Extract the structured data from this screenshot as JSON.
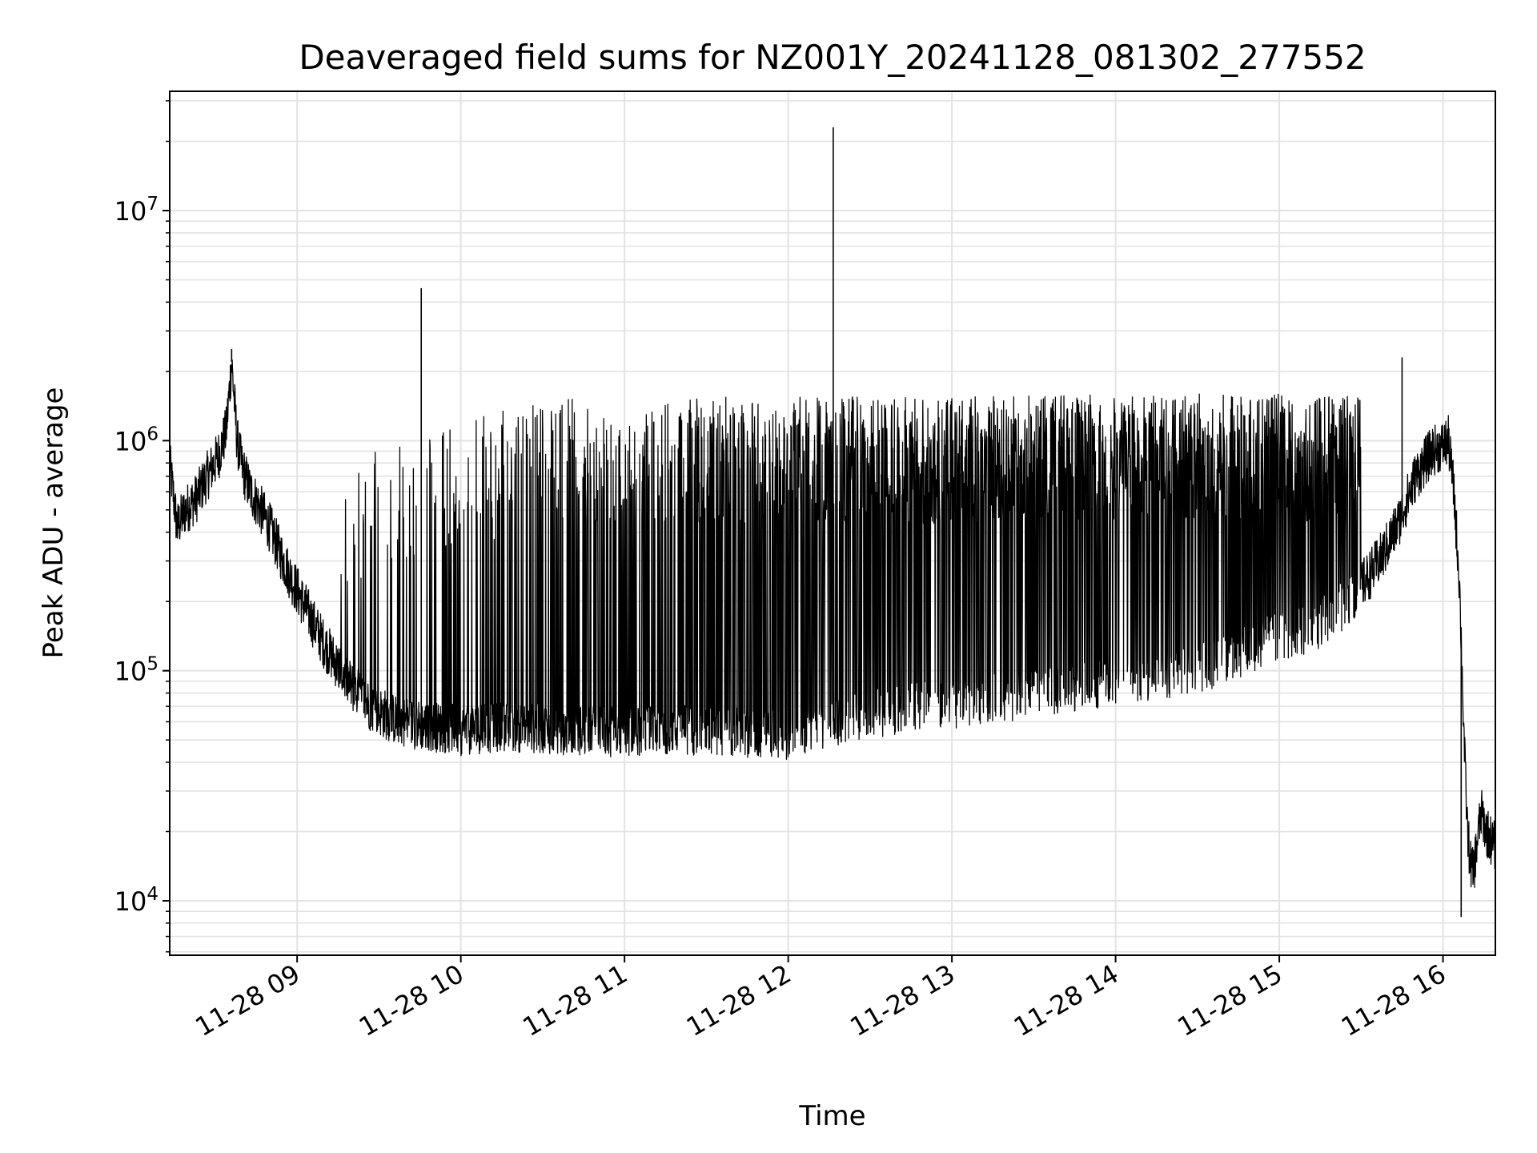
{
  "chart_data": {
    "type": "line",
    "title": "Deaveraged field sums for NZ001Y_20241128_081302_277552",
    "xlabel": "Time",
    "ylabel": "Peak ADU - average",
    "yscale": "log",
    "grid": true,
    "legend": "none",
    "line_color": "#000000",
    "grid_color": "#e3e3e3",
    "xlim": [
      "2024-11-28 08:13:18",
      "2024-11-28 16:19:12"
    ],
    "ylim": [
      5800,
      33000000
    ],
    "x_ticks": [
      {
        "value": "2024-11-28 09:00",
        "label": "11-28 09"
      },
      {
        "value": "2024-11-28 10:00",
        "label": "11-28 10"
      },
      {
        "value": "2024-11-28 11:00",
        "label": "11-28 11"
      },
      {
        "value": "2024-11-28 12:00",
        "label": "11-28 12"
      },
      {
        "value": "2024-11-28 13:00",
        "label": "11-28 13"
      },
      {
        "value": "2024-11-28 14:00",
        "label": "11-28 14"
      },
      {
        "value": "2024-11-28 15:00",
        "label": "11-28 15"
      },
      {
        "value": "2024-11-28 16:00",
        "label": "11-28 16"
      }
    ],
    "y_ticks": [
      {
        "value": 10000,
        "base": "10",
        "exp": "4"
      },
      {
        "value": 100000,
        "base": "10",
        "exp": "5"
      },
      {
        "value": 1000000,
        "base": "10",
        "exp": "6"
      },
      {
        "value": 10000000,
        "base": "10",
        "exp": "7"
      }
    ],
    "series": [
      {
        "x": [
          "2024-11-28 08:13:18",
          "2024-11-28 08:16:00",
          "2024-11-28 08:19:00",
          "2024-11-28 08:23:00",
          "2024-11-28 08:27:00",
          "2024-11-28 08:31:00",
          "2024-11-28 08:34:00",
          "2024-11-28 08:36:00",
          "2024-11-28 08:38:00",
          "2024-11-28 08:40:00",
          "2024-11-28 08:43:00",
          "2024-11-28 08:46:00",
          "2024-11-28 08:50:00",
          "2024-11-28 08:54:00",
          "2024-11-28 08:58:00",
          "2024-11-28 09:02:00",
          "2024-11-28 09:06:00",
          "2024-11-28 09:10:00",
          "2024-11-28 09:15:00",
          "2024-11-28 09:20:00",
          "2024-11-28 09:27:00",
          "2024-11-28 09:35:00",
          "2024-11-28 09:45:00",
          "2024-11-28 10:00:00",
          "2024-11-28 10:15:00",
          "2024-11-28 10:30:00",
          "2024-11-28 10:45:00",
          "2024-11-28 11:00:00",
          "2024-11-28 11:15:00",
          "2024-11-28 11:30:00",
          "2024-11-28 11:45:00",
          "2024-11-28 12:00:00",
          "2024-11-28 12:15:00",
          "2024-11-28 12:30:00",
          "2024-11-28 12:45:00",
          "2024-11-28 13:00:00",
          "2024-11-28 13:15:00",
          "2024-11-28 13:30:00",
          "2024-11-28 13:45:00",
          "2024-11-28 14:00:00",
          "2024-11-28 14:15:00",
          "2024-11-28 14:30:00",
          "2024-11-28 14:45:00",
          "2024-11-28 15:00:00",
          "2024-11-28 15:15:00",
          "2024-11-28 15:25:00",
          "2024-11-28 15:32:00",
          "2024-11-28 15:38:00",
          "2024-11-28 15:44:00",
          "2024-11-28 15:50:00",
          "2024-11-28 15:56:00",
          "2024-11-28 16:00:00",
          "2024-11-28 16:02:00",
          "2024-11-28 16:04:00",
          "2024-11-28 16:06:00",
          "2024-11-28 16:07:00",
          "2024-11-28 16:08:00",
          "2024-11-28 16:09:00",
          "2024-11-28 16:10:00",
          "2024-11-28 16:11:00",
          "2024-11-28 16:12:00",
          "2024-11-28 16:13:00",
          "2024-11-28 16:14:00",
          "2024-11-28 16:15:00",
          "2024-11-28 16:16:00",
          "2024-11-28 16:17:00",
          "2024-11-28 16:18:00",
          "2024-11-28 16:19:12"
        ],
        "y": [
          800000,
          420000,
          500000,
          560000,
          700000,
          850000,
          1100000,
          2200000,
          1000000,
          750000,
          600000,
          520000,
          420000,
          320000,
          250000,
          200000,
          160000,
          130000,
          105000,
          85000,
          70000,
          62000,
          58000,
          55000,
          57000,
          56000,
          55000,
          54000,
          56000,
          55000,
          54000,
          53000,
          60000,
          65000,
          70000,
          72000,
          75000,
          80000,
          85000,
          90000,
          95000,
          100000,
          120000,
          140000,
          160000,
          200000,
          250000,
          320000,
          450000,
          700000,
          900000,
          950000,
          1000000,
          600000,
          250000,
          100000,
          40000,
          20000,
          15000,
          13000,
          16000,
          20000,
          24000,
          22000,
          20000,
          19000,
          18000,
          17000
        ]
      }
    ],
    "bursts": {
      "description_of_values": "upper envelope of rapid oscillation",
      "x": [
        "2024-11-28 09:15:00",
        "2024-11-28 10:00:00",
        "2024-11-28 10:30:00",
        "2024-11-28 11:00:00",
        "2024-11-28 11:30:00",
        "2024-11-28 12:00:00",
        "2024-11-28 12:30:00",
        "2024-11-28 13:00:00",
        "2024-11-28 14:00:00",
        "2024-11-28 15:00:00",
        "2024-11-28 15:30:00"
      ],
      "y": [
        800000,
        1200000,
        1500000,
        1550000,
        1550000,
        1550000,
        1550000,
        1550000,
        1600000,
        1600000,
        1550000
      ]
    },
    "spikes": [
      {
        "x": "2024-11-28 08:36:00",
        "y": 2500000
      },
      {
        "x": "2024-11-28 09:45:30",
        "y": 4600000
      },
      {
        "x": "2024-11-28 12:16:30",
        "y": 23000000
      },
      {
        "x": "2024-11-28 15:45:00",
        "y": 2300000
      },
      {
        "x": "2024-11-28 16:06:40",
        "y": 8500
      }
    ]
  }
}
